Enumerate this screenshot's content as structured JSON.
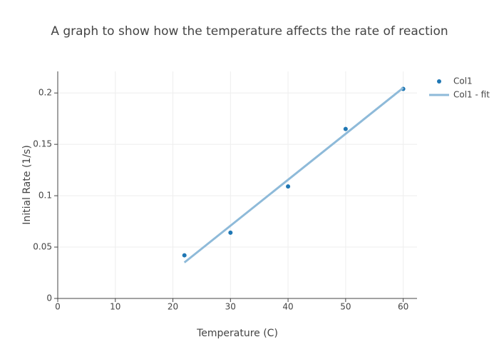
{
  "chart_data": {
    "type": "scatter",
    "title": "A graph to show how the temperature affects the rate of reaction",
    "x_label": "Temperature (C)",
    "y_label": "Initial Rate (1/s)",
    "xlim": [
      0,
      62.4
    ],
    "xticks": [
      0,
      10,
      20,
      30,
      40,
      50,
      60
    ],
    "ylim": [
      0,
      0.221
    ],
    "yticks": [
      0,
      0.05,
      0.1,
      0.15,
      0.2
    ],
    "grid": true,
    "legend": "right",
    "series": [
      {
        "name": "Col1",
        "mode": "markers",
        "color": "#1f77b4",
        "x": [
          22,
          30,
          40,
          50,
          60
        ],
        "values": [
          0.042,
          0.064,
          0.109,
          0.165,
          0.204
        ]
      },
      {
        "name": "Col1 - fit",
        "mode": "lines",
        "color": "#8ebad9",
        "x": [
          22,
          60
        ],
        "values": [
          0.035,
          0.205
        ]
      }
    ]
  }
}
